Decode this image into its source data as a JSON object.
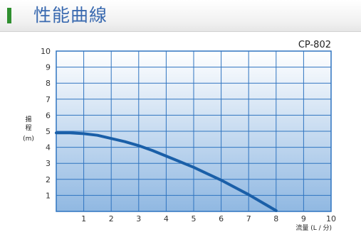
{
  "header": {
    "title": "性能曲線"
  },
  "chart_data": {
    "type": "line",
    "model_label": "CP-802",
    "xlabel": "流量 (L / 分)",
    "ylabel_chars": [
      "揚",
      "程"
    ],
    "ylabel_unit": "(m)",
    "xlim": [
      0,
      10
    ],
    "ylim": [
      0,
      10
    ],
    "x_ticks": [
      1,
      2,
      3,
      4,
      5,
      6,
      7,
      8,
      9,
      10
    ],
    "y_ticks": [
      1,
      2,
      3,
      4,
      5,
      6,
      7,
      8,
      9,
      10
    ],
    "grid": true,
    "series": [
      {
        "x": [
          0,
          0.5,
          1,
          1.5,
          2,
          2.5,
          3,
          3.5,
          4,
          4.5,
          5,
          5.5,
          6,
          6.5,
          7,
          7.5,
          8
        ],
        "y": [
          4.9,
          4.9,
          4.85,
          4.75,
          4.55,
          4.35,
          4.1,
          3.8,
          3.45,
          3.1,
          2.75,
          2.35,
          1.95,
          1.5,
          1.05,
          0.55,
          0.05
        ]
      }
    ],
    "colors": {
      "line": "#1a5fa8",
      "grid": "#2f74c0",
      "frame": "#2f74c0",
      "plot_top": "#ffffff",
      "plot_bottom": "#90b8e2"
    }
  }
}
